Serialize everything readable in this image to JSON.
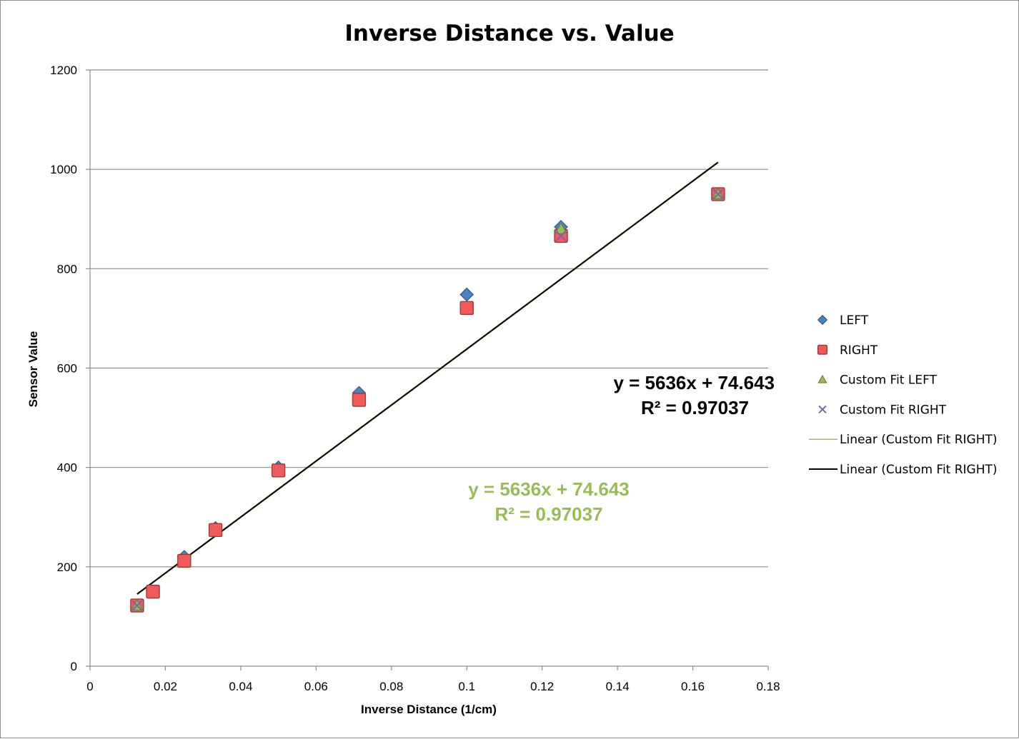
{
  "chart_data": {
    "type": "scatter",
    "title": "Inverse Distance vs. Value",
    "xlabel": "Inverse Distance (1/cm)",
    "ylabel": "Sensor Value",
    "xlim": [
      0,
      0.18
    ],
    "ylim": [
      0,
      1200
    ],
    "x_ticks": [
      "0",
      "0.02",
      "0.04",
      "0.06",
      "0.08",
      "0.1",
      "0.12",
      "0.14",
      "0.16",
      "0.18"
    ],
    "y_ticks": [
      "0",
      "200",
      "400",
      "600",
      "800",
      "1000",
      "1200"
    ],
    "grid": "horizontal",
    "legend_position": "right",
    "series": [
      {
        "name": "LEFT",
        "marker": "diamond",
        "color": "#4f81bd",
        "points": [
          [
            0.0125,
            122
          ],
          [
            0.0167,
            150
          ],
          [
            0.025,
            220
          ],
          [
            0.0333,
            278
          ],
          [
            0.05,
            400
          ],
          [
            0.0714,
            550
          ],
          [
            0.1,
            748
          ],
          [
            0.125,
            884
          ],
          [
            0.1667,
            950
          ]
        ]
      },
      {
        "name": "RIGHT",
        "marker": "square",
        "color": "#f05a5a",
        "points": [
          [
            0.0125,
            122
          ],
          [
            0.0167,
            150
          ],
          [
            0.025,
            212
          ],
          [
            0.0333,
            274
          ],
          [
            0.05,
            394
          ],
          [
            0.0714,
            536
          ],
          [
            0.1,
            721
          ],
          [
            0.125,
            866
          ],
          [
            0.1667,
            950
          ]
        ]
      },
      {
        "name": "Custom Fit LEFT",
        "marker": "triangle",
        "color": "#9bbb59",
        "points": [
          [
            0.0125,
            122
          ],
          [
            0.125,
            880
          ],
          [
            0.1667,
            950
          ]
        ]
      },
      {
        "name": "Custom Fit RIGHT",
        "marker": "x",
        "color": "#8064a2",
        "points": [
          [
            0.0125,
            122
          ],
          [
            0.125,
            866
          ],
          [
            0.1667,
            950
          ]
        ]
      }
    ],
    "trendlines": [
      {
        "name": "Linear  (Custom Fit RIGHT)",
        "color": "#9bbb59",
        "x_range": [
          0.0125,
          0.1667
        ],
        "slope": 5636,
        "intercept": 74.643
      },
      {
        "name": "Linear  (Custom Fit RIGHT)",
        "color": "#000000",
        "x_range": [
          0.0125,
          0.1667
        ],
        "slope": 5636,
        "intercept": 74.643
      }
    ],
    "annotations": {
      "black_equation": "y = 5636x + 74.643",
      "black_r2": "R² = 0.97037",
      "green_equation": "y = 5636x + 74.643",
      "green_r2": "R² = 0.97037"
    }
  }
}
